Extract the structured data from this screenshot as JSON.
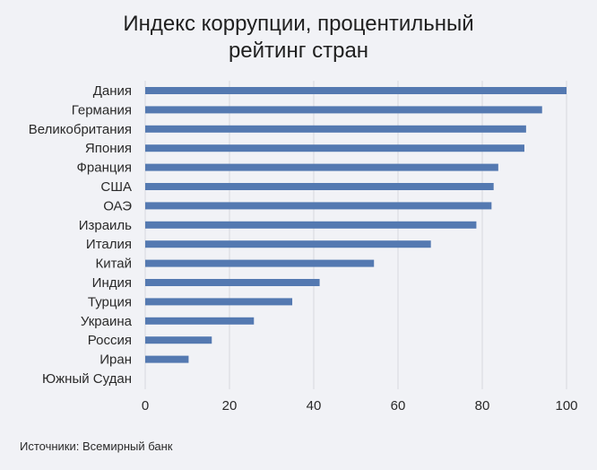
{
  "chart_data": {
    "type": "bar",
    "orientation": "horizontal",
    "title_lines": [
      "Индекс коррупции, процентильный",
      "рейтинг стран"
    ],
    "categories": [
      "Дания",
      "Германия",
      "Великобритания",
      "Япония",
      "Франция",
      "США",
      "ОАЭ",
      "Израиль",
      "Италия",
      "Китай",
      "Индия",
      "Турция",
      "Украина",
      "Россия",
      "Иран",
      "Южный Судан"
    ],
    "values": [
      100,
      94.2,
      90.4,
      90.0,
      83.8,
      82.7,
      82.2,
      78.6,
      67.8,
      54.3,
      41.4,
      34.9,
      25.8,
      15.8,
      10.3,
      0
    ],
    "xlim": [
      0,
      100
    ],
    "x_ticks": [
      0,
      20,
      40,
      60,
      80,
      100
    ],
    "grid": "vertical",
    "bar_color": "#5479b1",
    "source": "Источники: Всемирный банк"
  }
}
